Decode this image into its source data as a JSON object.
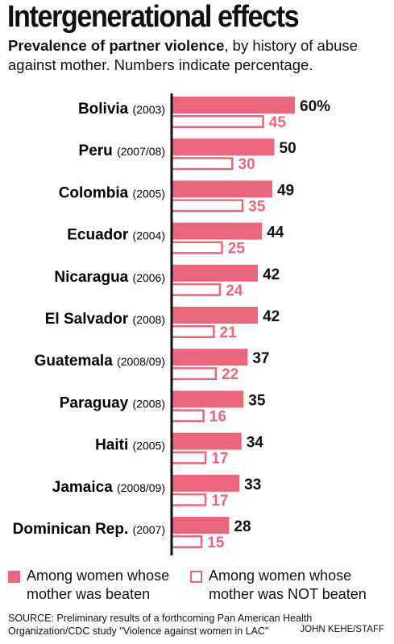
{
  "header": {
    "title": "Intergenerational effects",
    "subtitle_bold": "Prevalence of partner violence",
    "subtitle_rest": ", by history of abuse against mother. Numbers indicate percentage."
  },
  "colors": {
    "accent": "#e9667c",
    "axis": "#111111"
  },
  "chart_data": {
    "type": "bar",
    "orientation": "horizontal",
    "categories": [
      {
        "name": "Bolivia",
        "year": "(2003)"
      },
      {
        "name": "Peru",
        "year": "(2007/08)"
      },
      {
        "name": "Colombia",
        "year": "(2005)"
      },
      {
        "name": "Ecuador",
        "year": "(2004)"
      },
      {
        "name": "Nicaragua",
        "year": "(2006)"
      },
      {
        "name": "El Salvador",
        "year": "(2008)"
      },
      {
        "name": "Guatemala",
        "year": "(2008/09)"
      },
      {
        "name": "Paraguay",
        "year": "(2008)"
      },
      {
        "name": "Haiti",
        "year": "(2005)"
      },
      {
        "name": "Jamaica",
        "year": "(2008/09)"
      },
      {
        "name": "Dominican Rep.",
        "year": "(2007)"
      }
    ],
    "series": [
      {
        "name": "Among women whose mother was beaten",
        "values": [
          60,
          50,
          49,
          44,
          42,
          42,
          37,
          35,
          34,
          33,
          28
        ],
        "style": "filled"
      },
      {
        "name": "Among women whose mother was NOT beaten",
        "values": [
          45,
          30,
          35,
          25,
          24,
          21,
          22,
          16,
          17,
          17,
          15
        ],
        "style": "outline"
      }
    ],
    "first_label_suffix": "%",
    "xlim": [
      0,
      60
    ],
    "grid": false,
    "legend": "bottom"
  },
  "footer": {
    "source": "SOURCE: Preliminary results of a forthcoming Pan American Health Organization/CDC study \"Violence against women in LAC\"",
    "credit": "JOHN KEHE/STAFF"
  }
}
